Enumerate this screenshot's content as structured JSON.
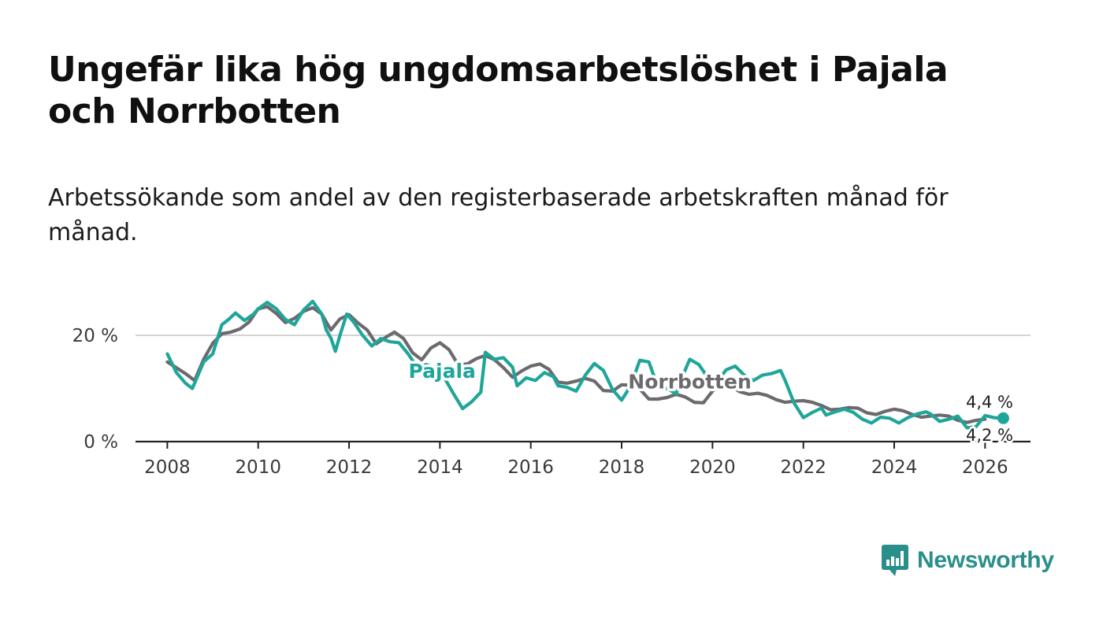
{
  "header": {
    "title": "Ungefär lika hög ungdomsarbetslöshet i Pajala och Norrbotten",
    "subtitle": "Arbetssökande som andel av den registerbaserade arbetskraften månad för månad."
  },
  "brand": {
    "name": "Newsworthy",
    "icon": "newsworthy-logo-icon",
    "color": "#2a8f8a"
  },
  "chart_data": {
    "type": "line",
    "title": "Ungefär lika hög ungdomsarbetslöshet i Pajala och Norrbotten",
    "xlabel": "",
    "ylabel": "",
    "xlim": [
      2007.3,
      2027.0
    ],
    "ylim": [
      0,
      30
    ],
    "x_ticks": [
      2008,
      2010,
      2012,
      2014,
      2016,
      2018,
      2020,
      2022,
      2024,
      2026
    ],
    "y_ticks": [
      {
        "value": 0,
        "label": "0 %"
      },
      {
        "value": 20,
        "label": "20 %"
      }
    ],
    "grid": true,
    "series": [
      {
        "name": "Norrbotten",
        "color": "#6c6a6e",
        "label_position": {
          "x": 2019.5,
          "y": 10
        },
        "end_label": "4,2 %",
        "points": [
          [
            2008.0,
            15.0
          ],
          [
            2008.2,
            13.9
          ],
          [
            2008.4,
            12.8
          ],
          [
            2008.6,
            11.5
          ],
          [
            2008.8,
            15.5
          ],
          [
            2009.0,
            18.5
          ],
          [
            2009.2,
            20.3
          ],
          [
            2009.4,
            20.6
          ],
          [
            2009.6,
            21.2
          ],
          [
            2009.8,
            22.5
          ],
          [
            2010.0,
            25.0
          ],
          [
            2010.2,
            25.4
          ],
          [
            2010.4,
            24.1
          ],
          [
            2010.6,
            22.4
          ],
          [
            2010.8,
            23.2
          ],
          [
            2011.0,
            24.5
          ],
          [
            2011.2,
            25.2
          ],
          [
            2011.4,
            24.0
          ],
          [
            2011.6,
            21.0
          ],
          [
            2011.8,
            23.1
          ],
          [
            2012.0,
            23.9
          ],
          [
            2012.2,
            22.3
          ],
          [
            2012.4,
            21.0
          ],
          [
            2012.6,
            18.4
          ],
          [
            2012.8,
            19.6
          ],
          [
            2013.0,
            20.6
          ],
          [
            2013.2,
            19.4
          ],
          [
            2013.4,
            16.7
          ],
          [
            2013.6,
            15.4
          ],
          [
            2013.8,
            17.6
          ],
          [
            2014.0,
            18.6
          ],
          [
            2014.2,
            17.3
          ],
          [
            2014.4,
            14.5
          ],
          [
            2014.6,
            14.6
          ],
          [
            2014.8,
            15.6
          ],
          [
            2015.0,
            16.2
          ],
          [
            2015.2,
            15.4
          ],
          [
            2015.4,
            13.9
          ],
          [
            2015.6,
            12.1
          ],
          [
            2015.8,
            13.3
          ],
          [
            2016.0,
            14.2
          ],
          [
            2016.2,
            14.6
          ],
          [
            2016.4,
            13.6
          ],
          [
            2016.6,
            11.2
          ],
          [
            2016.8,
            11.0
          ],
          [
            2017.0,
            11.4
          ],
          [
            2017.2,
            11.9
          ],
          [
            2017.4,
            11.4
          ],
          [
            2017.6,
            9.6
          ],
          [
            2017.8,
            9.5
          ],
          [
            2018.0,
            10.7
          ],
          [
            2018.2,
            10.6
          ],
          [
            2018.4,
            9.9
          ],
          [
            2018.6,
            8.0
          ],
          [
            2018.8,
            8.0
          ],
          [
            2019.0,
            8.3
          ],
          [
            2019.2,
            8.9
          ],
          [
            2019.4,
            8.4
          ],
          [
            2019.6,
            7.4
          ],
          [
            2019.8,
            7.3
          ],
          [
            2020.0,
            9.5
          ],
          [
            2020.2,
            10.9
          ],
          [
            2020.4,
            10.5
          ],
          [
            2020.6,
            9.4
          ],
          [
            2020.8,
            8.9
          ],
          [
            2021.0,
            9.1
          ],
          [
            2021.2,
            8.7
          ],
          [
            2021.4,
            7.9
          ],
          [
            2021.6,
            7.4
          ],
          [
            2021.8,
            7.6
          ],
          [
            2022.0,
            7.7
          ],
          [
            2022.2,
            7.4
          ],
          [
            2022.4,
            6.8
          ],
          [
            2022.6,
            6.0
          ],
          [
            2022.8,
            6.1
          ],
          [
            2023.0,
            6.4
          ],
          [
            2023.2,
            6.3
          ],
          [
            2023.4,
            5.4
          ],
          [
            2023.6,
            5.1
          ],
          [
            2023.8,
            5.7
          ],
          [
            2024.0,
            6.1
          ],
          [
            2024.2,
            5.8
          ],
          [
            2024.4,
            5.1
          ],
          [
            2024.6,
            4.6
          ],
          [
            2024.8,
            4.8
          ],
          [
            2025.0,
            5.0
          ],
          [
            2025.2,
            4.8
          ],
          [
            2025.4,
            4.0
          ],
          [
            2025.6,
            3.6
          ],
          [
            2025.8,
            4.0
          ],
          [
            2026.0,
            4.2
          ]
        ]
      },
      {
        "name": "Pajala",
        "color": "#1fa69a",
        "label_position": {
          "x": 2014.05,
          "y": 12
        },
        "end_label": "4,4 %",
        "points": [
          [
            2008.0,
            16.5
          ],
          [
            2008.2,
            13.0
          ],
          [
            2008.4,
            11.0
          ],
          [
            2008.55,
            10.0
          ],
          [
            2008.8,
            15.0
          ],
          [
            2009.0,
            16.5
          ],
          [
            2009.2,
            22.0
          ],
          [
            2009.35,
            23.0
          ],
          [
            2009.5,
            24.2
          ],
          [
            2009.7,
            22.8
          ],
          [
            2009.9,
            24.0
          ],
          [
            2010.0,
            25.0
          ],
          [
            2010.2,
            26.2
          ],
          [
            2010.4,
            25.0
          ],
          [
            2010.6,
            23.0
          ],
          [
            2010.8,
            22.0
          ],
          [
            2011.0,
            24.8
          ],
          [
            2011.2,
            26.4
          ],
          [
            2011.4,
            24.0
          ],
          [
            2011.5,
            21.0
          ],
          [
            2011.6,
            19.5
          ],
          [
            2011.7,
            17.0
          ],
          [
            2011.8,
            20.0
          ],
          [
            2011.95,
            24.0
          ],
          [
            2012.1,
            22.5
          ],
          [
            2012.3,
            20.0
          ],
          [
            2012.5,
            18.0
          ],
          [
            2012.7,
            19.4
          ],
          [
            2012.9,
            18.8
          ],
          [
            2013.1,
            18.6
          ],
          [
            2013.3,
            16.5
          ],
          [
            2013.5,
            14.0
          ],
          [
            2013.7,
            14.5
          ],
          [
            2013.9,
            13.9
          ],
          [
            2014.1,
            12.0
          ],
          [
            2014.3,
            9.0
          ],
          [
            2014.5,
            6.2
          ],
          [
            2014.7,
            7.5
          ],
          [
            2014.9,
            9.3
          ],
          [
            2015.0,
            16.8
          ],
          [
            2015.2,
            15.5
          ],
          [
            2015.4,
            15.8
          ],
          [
            2015.6,
            14.0
          ],
          [
            2015.7,
            10.5
          ],
          [
            2015.9,
            12.0
          ],
          [
            2016.1,
            11.5
          ],
          [
            2016.3,
            13.0
          ],
          [
            2016.5,
            12.2
          ],
          [
            2016.6,
            10.5
          ],
          [
            2016.8,
            10.2
          ],
          [
            2017.0,
            9.5
          ],
          [
            2017.2,
            12.5
          ],
          [
            2017.4,
            14.7
          ],
          [
            2017.6,
            13.4
          ],
          [
            2017.8,
            9.8
          ],
          [
            2018.0,
            7.8
          ],
          [
            2018.2,
            10.5
          ],
          [
            2018.4,
            15.3
          ],
          [
            2018.6,
            15.0
          ],
          [
            2018.8,
            10.2
          ],
          [
            2019.0,
            10.0
          ],
          [
            2019.2,
            9.0
          ],
          [
            2019.4,
            13.5
          ],
          [
            2019.5,
            15.5
          ],
          [
            2019.7,
            14.5
          ],
          [
            2019.9,
            12.0
          ],
          [
            2020.1,
            11.2
          ],
          [
            2020.3,
            13.5
          ],
          [
            2020.5,
            14.2
          ],
          [
            2020.7,
            12.5
          ],
          [
            2020.9,
            11.5
          ],
          [
            2021.1,
            12.5
          ],
          [
            2021.3,
            12.8
          ],
          [
            2021.5,
            13.4
          ],
          [
            2021.6,
            11.5
          ],
          [
            2021.8,
            7.2
          ],
          [
            2022.0,
            4.5
          ],
          [
            2022.2,
            5.5
          ],
          [
            2022.4,
            6.3
          ],
          [
            2022.5,
            5.0
          ],
          [
            2022.7,
            5.6
          ],
          [
            2022.9,
            6.1
          ],
          [
            2023.1,
            5.5
          ],
          [
            2023.3,
            4.2
          ],
          [
            2023.5,
            3.5
          ],
          [
            2023.7,
            4.6
          ],
          [
            2023.9,
            4.4
          ],
          [
            2024.1,
            3.5
          ],
          [
            2024.3,
            4.5
          ],
          [
            2024.5,
            5.2
          ],
          [
            2024.7,
            5.6
          ],
          [
            2024.8,
            5.2
          ],
          [
            2025.0,
            3.8
          ],
          [
            2025.2,
            4.2
          ],
          [
            2025.4,
            4.8
          ],
          [
            2025.6,
            2.6
          ],
          [
            2025.8,
            2.8
          ],
          [
            2026.0,
            4.9
          ],
          [
            2026.2,
            4.5
          ],
          [
            2026.4,
            4.4
          ]
        ]
      }
    ]
  }
}
